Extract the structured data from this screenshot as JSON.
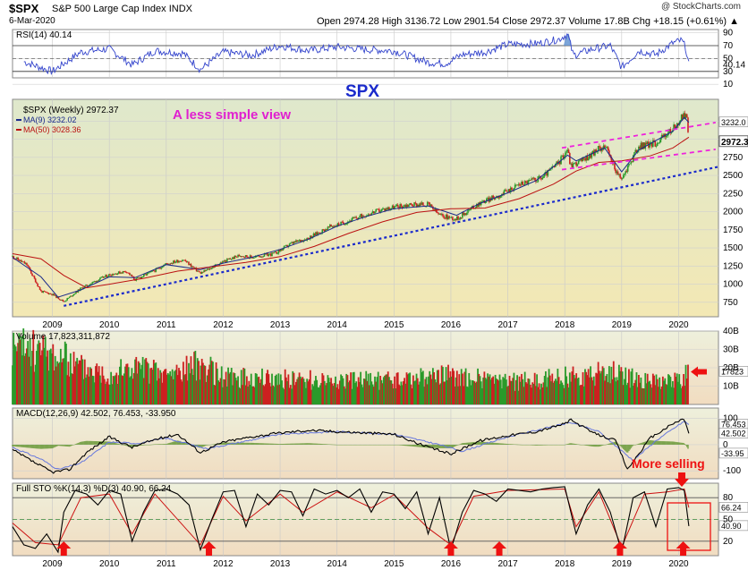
{
  "header": {
    "symbol": "$SPX",
    "name": "S&P 500 Large Cap Index",
    "exchange": "INDX",
    "date": "6-Mar-2020",
    "ohlc": "Open 2974.28  High 3136.72  Low 2901.54  Close 2972.37  Volume 17.8B  Chg +18.15 (+0.61%) ▲",
    "watermark": "@ StockCharts.com"
  },
  "colors": {
    "price_up": "#2a9a2a",
    "price_down": "#cc2020",
    "ma9": "#1a2a8a",
    "ma50": "#bb1111",
    "trend_blue": "#1a2acc",
    "channel_magenta": "#ee22dd",
    "rsi_line": "#3344cc",
    "annotation_red": "#ee1111"
  },
  "chart_data": [
    {
      "type": "line",
      "panel": "rsi",
      "legend": "RSI(14) 40.14",
      "last_value": 40.14,
      "ylim": [
        20,
        95
      ],
      "y_ticks": [
        90,
        70,
        50,
        30,
        10
      ],
      "y_labels": [
        "90",
        "70",
        "50",
        "30",
        "10"
      ],
      "overbought": 70,
      "oversold": 30,
      "x": [
        2008.5,
        2009.0,
        2009.2,
        2009.5,
        2010.0,
        2010.4,
        2010.8,
        2011.3,
        2011.6,
        2012.0,
        2012.5,
        2013.0,
        2013.5,
        2014.0,
        2014.5,
        2015.0,
        2015.6,
        2015.9,
        2016.2,
        2016.6,
        2017.0,
        2017.5,
        2017.9,
        2018.05,
        2018.15,
        2018.5,
        2018.8,
        2019.0,
        2019.3,
        2019.6,
        2019.9,
        2020.05,
        2020.12,
        2020.18
      ],
      "values": [
        45,
        30,
        42,
        60,
        65,
        40,
        62,
        58,
        33,
        60,
        55,
        70,
        62,
        68,
        64,
        62,
        44,
        42,
        56,
        60,
        72,
        73,
        80,
        88,
        55,
        65,
        70,
        36,
        62,
        56,
        74,
        78,
        68,
        40.14
      ]
    },
    {
      "type": "candlestick",
      "panel": "price",
      "title": "SPX",
      "legend": "$SPX (Weekly) 2972.37",
      "subtitle": "A less simple view",
      "last_value": 2972.37,
      "ylim": [
        550,
        3550
      ],
      "y_ticks": [
        750,
        1000,
        1250,
        1500,
        1750,
        2000,
        2250,
        2500,
        2750,
        3000,
        3250
      ],
      "y_labels": [
        "750",
        "1000",
        "1250",
        "1500",
        "1750",
        "2000",
        "2250",
        "2500",
        "2750",
        "",
        ""
      ],
      "xlim": [
        2008.3,
        2020.7
      ],
      "x_ticks": [
        2009,
        2010,
        2011,
        2012,
        2013,
        2014,
        2015,
        2016,
        2017,
        2018,
        2019,
        2020
      ],
      "x_labels": [
        "2009",
        "2010",
        "2011",
        "2012",
        "2013",
        "2014",
        "2015",
        "2016",
        "2017",
        "2018",
        "2019",
        "2020"
      ],
      "x": [
        2008.3,
        2008.55,
        2008.8,
        2009.0,
        2009.2,
        2009.5,
        2009.8,
        2010.0,
        2010.3,
        2010.45,
        2010.8,
        2011.0,
        2011.3,
        2011.6,
        2011.8,
        2012.0,
        2012.3,
        2012.5,
        2012.9,
        2013.2,
        2013.5,
        2013.9,
        2014.1,
        2014.5,
        2014.9,
        2015.3,
        2015.6,
        2015.8,
        2016.1,
        2016.5,
        2016.9,
        2017.2,
        2017.6,
        2017.9,
        2018.05,
        2018.1,
        2018.3,
        2018.7,
        2018.95,
        2019.0,
        2019.3,
        2019.6,
        2019.9,
        2020.1,
        2020.13,
        2020.18
      ],
      "values": [
        1380,
        1270,
        900,
        860,
        760,
        940,
        1060,
        1130,
        1180,
        1060,
        1190,
        1280,
        1340,
        1150,
        1230,
        1310,
        1400,
        1370,
        1420,
        1560,
        1640,
        1800,
        1840,
        1960,
        2050,
        2100,
        2100,
        1950,
        1900,
        2120,
        2240,
        2380,
        2470,
        2680,
        2870,
        2640,
        2700,
        2920,
        2480,
        2450,
        2900,
        2950,
        3140,
        3330,
        3380,
        2972.37
      ],
      "series": [
        {
          "name": "MA(9) 3232.02",
          "x": [
            2008.3,
            2008.8,
            2009.1,
            2009.5,
            2010.0,
            2010.45,
            2011.0,
            2011.6,
            2012.0,
            2012.5,
            2013.0,
            2013.5,
            2014.0,
            2014.5,
            2015.0,
            2015.6,
            2016.1,
            2016.5,
            2017.0,
            2017.5,
            2018.05,
            2018.2,
            2018.7,
            2019.0,
            2019.3,
            2019.9,
            2020.1,
            2020.18
          ],
          "values": [
            1370,
            1100,
            820,
            920,
            1100,
            1090,
            1270,
            1200,
            1290,
            1370,
            1480,
            1620,
            1800,
            1930,
            2040,
            2080,
            1950,
            2110,
            2260,
            2430,
            2780,
            2700,
            2880,
            2550,
            2850,
            3110,
            3300,
            3232.02
          ]
        },
        {
          "name": "MA(50) 3028.36",
          "x": [
            2008.3,
            2008.8,
            2009.2,
            2009.6,
            2010.0,
            2010.6,
            2011.2,
            2011.8,
            2012.4,
            2013.0,
            2013.6,
            2014.2,
            2014.8,
            2015.4,
            2016.0,
            2016.6,
            2017.2,
            2017.8,
            2018.2,
            2018.6,
            2019.0,
            2019.5,
            2019.9,
            2020.18
          ],
          "values": [
            1420,
            1350,
            1120,
            950,
            1000,
            1080,
            1180,
            1240,
            1300,
            1380,
            1520,
            1700,
            1860,
            1990,
            2040,
            2050,
            2180,
            2380,
            2560,
            2680,
            2700,
            2770,
            2880,
            3028.36
          ]
        }
      ]
    },
    {
      "type": "bar",
      "panel": "volume",
      "legend": "Volume 17,823,311,872",
      "last_value": 17823311872,
      "ylim": [
        0,
        40000000000
      ],
      "y_ticks": [
        10000000000,
        20000000000,
        30000000000,
        40000000000
      ],
      "y_labels": [
        "10B",
        "20B",
        "30B",
        "40B"
      ],
      "x": [
        2008.5,
        2009.0,
        2009.5,
        2010.0,
        2010.5,
        2011.0,
        2011.6,
        2012.0,
        2013.0,
        2014.0,
        2015.0,
        2016.0,
        2017.0,
        2018.0,
        2018.9,
        2019.5,
        2020.0,
        2020.18
      ],
      "values": [
        33000000000,
        30000000000,
        22000000000,
        18000000000,
        22000000000,
        17000000000,
        24000000000,
        16000000000,
        15000000000,
        14000000000,
        14000000000,
        17000000000,
        13000000000,
        16000000000,
        19000000000,
        13000000000,
        14000000000,
        17823311872
      ]
    },
    {
      "type": "line",
      "panel": "macd",
      "legend": "MACD(12,26,9) 42.502, 76.453, -33.950",
      "values_latest": {
        "macd": 42.502,
        "signal": 76.453,
        "histogram": -33.95
      },
      "ylim": [
        -130,
        140
      ],
      "y_ticks": [
        -100,
        0,
        100
      ],
      "y_labels": [
        "-100",
        "0",
        "100"
      ],
      "x": [
        2008.3,
        2008.7,
        2009.0,
        2009.3,
        2009.6,
        2010.0,
        2010.4,
        2010.8,
        2011.2,
        2011.6,
        2012.0,
        2012.5,
        2013.0,
        2013.5,
        2014.0,
        2014.5,
        2015.0,
        2015.6,
        2016.0,
        2016.5,
        2017.0,
        2017.5,
        2018.0,
        2018.1,
        2018.5,
        2018.9,
        2019.1,
        2019.5,
        2019.9,
        2020.1,
        2020.18
      ],
      "values": [
        -20,
        -70,
        -105,
        -95,
        -30,
        30,
        -10,
        20,
        40,
        -30,
        10,
        30,
        45,
        55,
        50,
        45,
        40,
        -10,
        -35,
        15,
        35,
        50,
        80,
        95,
        45,
        15,
        -95,
        25,
        80,
        100,
        42.502
      ],
      "series": [
        {
          "name": "Signal",
          "x": [
            2008.3,
            2008.8,
            2009.1,
            2009.5,
            2010.0,
            2010.5,
            2011.0,
            2011.7,
            2012.2,
            2013.0,
            2014.0,
            2015.0,
            2015.8,
            2016.2,
            2017.0,
            2018.1,
            2018.6,
            2019.2,
            2019.6,
            2020.1,
            2020.18
          ],
          "values": [
            -10,
            -55,
            -95,
            -70,
            10,
            5,
            25,
            -15,
            5,
            40,
            50,
            40,
            0,
            -25,
            30,
            85,
            50,
            -60,
            15,
            90,
            76.453
          ]
        }
      ]
    },
    {
      "type": "line",
      "panel": "stochastic",
      "legend": "Full STO %K(14,3) %D(3) 40.90, 66.24",
      "values_latest": {
        "k": 40.9,
        "d": 66.24
      },
      "ylim": [
        0,
        100
      ],
      "y_ticks": [
        20,
        50,
        80
      ],
      "y_labels": [
        "20",
        "50",
        "80"
      ],
      "x": [
        2008.3,
        2008.5,
        2008.7,
        2008.9,
        2009.1,
        2009.2,
        2009.4,
        2009.6,
        2009.8,
        2010.0,
        2010.2,
        2010.4,
        2010.6,
        2010.8,
        2011.0,
        2011.2,
        2011.4,
        2011.6,
        2011.8,
        2012.0,
        2012.2,
        2012.4,
        2012.6,
        2012.8,
        2013.0,
        2013.2,
        2013.4,
        2013.6,
        2013.8,
        2014.0,
        2014.2,
        2014.4,
        2014.6,
        2014.8,
        2015.0,
        2015.2,
        2015.4,
        2015.6,
        2015.8,
        2016.0,
        2016.2,
        2016.4,
        2016.6,
        2016.8,
        2017.0,
        2017.2,
        2017.4,
        2017.6,
        2017.8,
        2018.0,
        2018.2,
        2018.4,
        2018.6,
        2018.8,
        2019.0,
        2019.2,
        2019.4,
        2019.6,
        2019.8,
        2020.0,
        2020.1,
        2020.18
      ],
      "values": [
        40,
        15,
        10,
        30,
        5,
        60,
        90,
        85,
        70,
        90,
        85,
        20,
        60,
        90,
        92,
        85,
        70,
        8,
        50,
        88,
        90,
        40,
        85,
        70,
        90,
        88,
        55,
        92,
        85,
        90,
        80,
        92,
        60,
        88,
        85,
        65,
        88,
        30,
        80,
        8,
        60,
        90,
        85,
        75,
        92,
        90,
        88,
        92,
        94,
        95,
        30,
        70,
        92,
        60,
        5,
        80,
        88,
        40,
        92,
        94,
        90,
        40.9
      ],
      "series": [
        {
          "name": "%D",
          "x": [
            2008.3,
            2008.7,
            2009.1,
            2009.5,
            2010.0,
            2010.4,
            2010.8,
            2011.6,
            2012.0,
            2012.4,
            2013.0,
            2013.4,
            2014.0,
            2014.6,
            2015.0,
            2015.6,
            2016.0,
            2016.4,
            2017.0,
            2018.0,
            2018.2,
            2018.6,
            2019.0,
            2019.4,
            2019.8,
            2020.1,
            2020.18
          ],
          "values": [
            45,
            18,
            15,
            80,
            85,
            30,
            85,
            15,
            82,
            48,
            85,
            60,
            88,
            66,
            84,
            38,
            15,
            82,
            90,
            92,
            40,
            88,
            12,
            85,
            88,
            92,
            66.24
          ]
        }
      ],
      "annotation": "More selling",
      "arrow_x": [
        2009.2,
        2011.75,
        2016.0,
        2016.85,
        2018.97,
        2020.08
      ],
      "arrow_labels": [
        "up",
        "up",
        "up",
        "up",
        "up",
        "up"
      ]
    }
  ]
}
